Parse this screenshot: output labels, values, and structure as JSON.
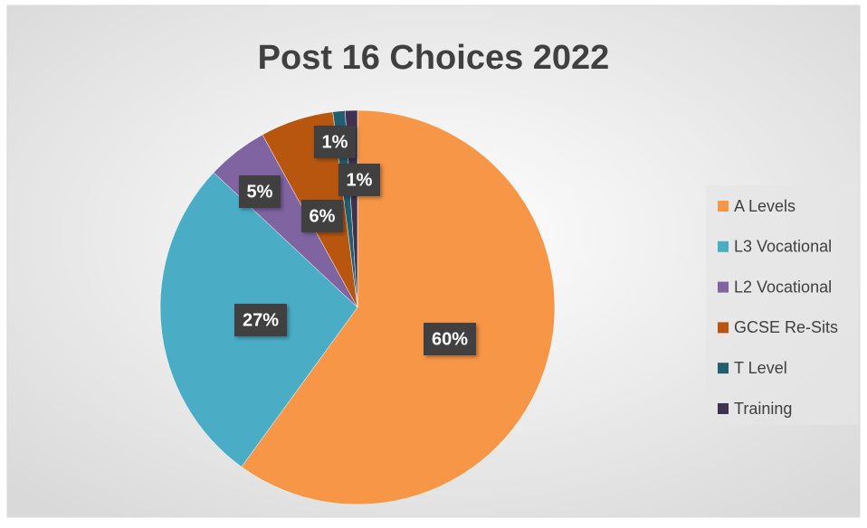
{
  "chart_data": {
    "type": "pie",
    "title": "Post 16 Choices 2022",
    "categories": [
      "A Levels",
      "L3 Vocational",
      "L2 Vocational",
      "GCSE Re-Sits",
      "T Level",
      "Training"
    ],
    "values": [
      60,
      27,
      5,
      6,
      1,
      1
    ],
    "value_labels": [
      "60%",
      "27%",
      "5%",
      "6%",
      "1%",
      "1%"
    ],
    "colors": [
      "#f79646",
      "#4bacc6",
      "#8064a2",
      "#b8560f",
      "#215f6f",
      "#3f3151"
    ],
    "legend": "right"
  }
}
